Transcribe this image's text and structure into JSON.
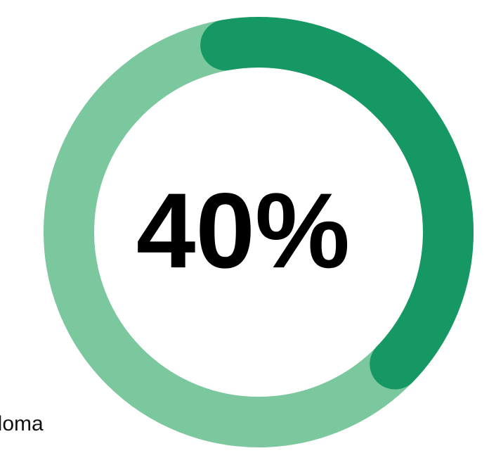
{
  "chart_data": {
    "type": "pie",
    "center_label": "40%",
    "value_percent": 40,
    "slices": [
      {
        "value": 40,
        "color": "#169865"
      },
      {
        "value": 60,
        "color": "#7CC89E"
      }
    ],
    "background_color": "#ffffff",
    "title": "",
    "xlabel": "",
    "ylabel": ""
  },
  "footer": {
    "partial_label": "ploma"
  }
}
